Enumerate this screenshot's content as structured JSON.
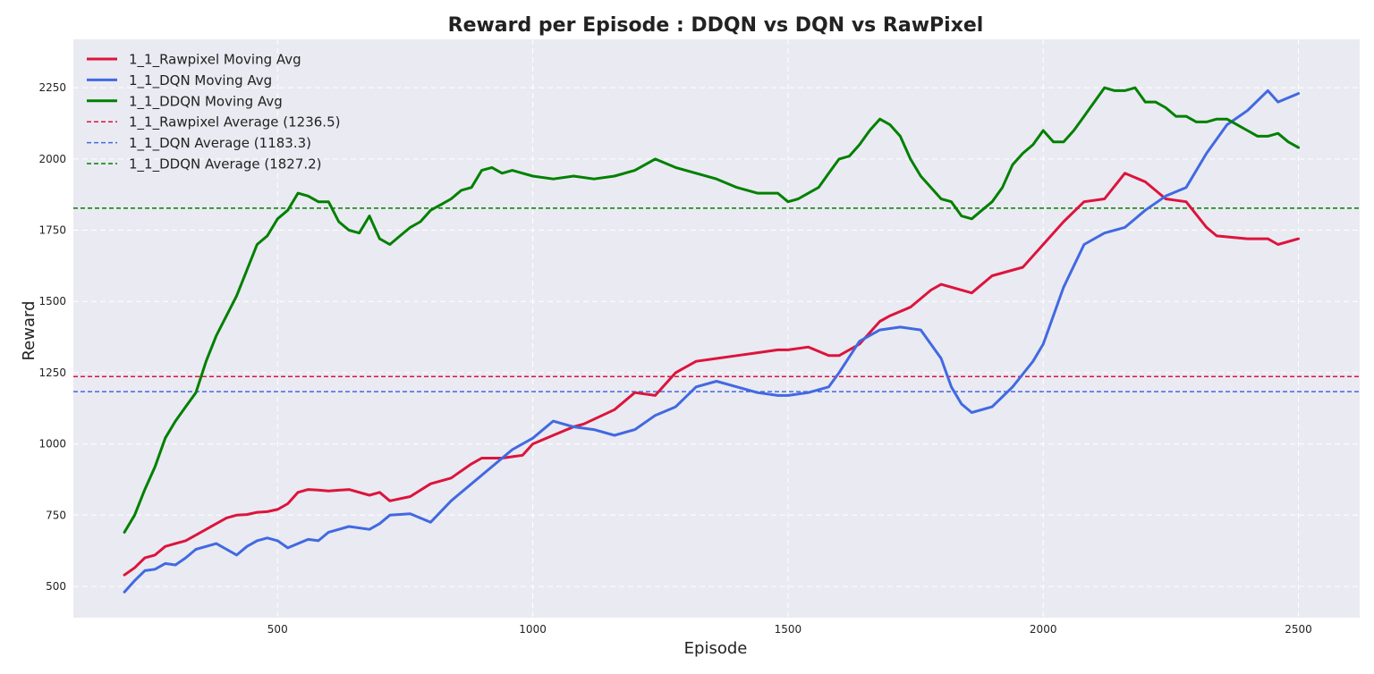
{
  "chart_data": {
    "type": "line",
    "title": "Reward per Episode : DDQN vs DQN vs RawPixel",
    "xlabel": "Episode",
    "ylabel": "Reward",
    "xlim": [
      100,
      2620
    ],
    "ylim": [
      390,
      2420
    ],
    "x_ticks": [
      500,
      1000,
      1500,
      2000,
      2500
    ],
    "y_ticks": [
      500,
      750,
      1000,
      1250,
      1500,
      1750,
      2000,
      2250
    ],
    "grid": true,
    "legend_position": "top-left",
    "series": [
      {
        "name": "1_1_Rawpixel Moving Avg",
        "color": "#dc143c",
        "style": "solid",
        "x": [
          200,
          220,
          240,
          260,
          280,
          300,
          320,
          340,
          360,
          380,
          400,
          420,
          440,
          460,
          480,
          500,
          520,
          540,
          560,
          580,
          600,
          640,
          680,
          700,
          720,
          760,
          800,
          840,
          880,
          900,
          940,
          980,
          1000,
          1040,
          1080,
          1100,
          1160,
          1200,
          1240,
          1280,
          1320,
          1360,
          1400,
          1440,
          1480,
          1500,
          1540,
          1580,
          1600,
          1640,
          1680,
          1700,
          1740,
          1780,
          1800,
          1860,
          1900,
          1960,
          2000,
          2040,
          2080,
          2120,
          2160,
          2200,
          2240,
          2280,
          2320,
          2340,
          2400,
          2440,
          2460,
          2500
        ],
        "y": [
          540,
          565,
          600,
          610,
          640,
          650,
          660,
          680,
          700,
          720,
          740,
          750,
          752,
          760,
          762,
          770,
          790,
          830,
          840,
          838,
          835,
          840,
          820,
          830,
          800,
          815,
          860,
          880,
          930,
          950,
          950,
          960,
          1000,
          1030,
          1060,
          1070,
          1120,
          1180,
          1170,
          1250,
          1290,
          1300,
          1310,
          1320,
          1330,
          1330,
          1340,
          1310,
          1310,
          1350,
          1430,
          1450,
          1480,
          1540,
          1560,
          1530,
          1590,
          1620,
          1700,
          1780,
          1850,
          1860,
          1950,
          1920,
          1860,
          1850,
          1760,
          1730,
          1720,
          1720,
          1700,
          1720
        ]
      },
      {
        "name": "1_1_DQN Moving Avg",
        "color": "#4169e1",
        "style": "solid",
        "x": [
          200,
          220,
          240,
          260,
          280,
          300,
          320,
          340,
          360,
          380,
          400,
          420,
          440,
          460,
          480,
          500,
          520,
          540,
          560,
          580,
          600,
          640,
          680,
          700,
          720,
          760,
          800,
          840,
          880,
          920,
          960,
          1000,
          1040,
          1080,
          1120,
          1160,
          1200,
          1240,
          1280,
          1320,
          1360,
          1400,
          1440,
          1480,
          1500,
          1540,
          1580,
          1600,
          1640,
          1680,
          1720,
          1760,
          1800,
          1820,
          1840,
          1860,
          1900,
          1940,
          1980,
          2000,
          2040,
          2080,
          2120,
          2160,
          2200,
          2240,
          2280,
          2320,
          2360,
          2400,
          2440,
          2460,
          2500
        ],
        "y": [
          480,
          520,
          555,
          560,
          580,
          575,
          600,
          630,
          640,
          650,
          630,
          610,
          640,
          660,
          670,
          660,
          635,
          650,
          665,
          660,
          690,
          710,
          700,
          720,
          750,
          755,
          725,
          800,
          860,
          920,
          980,
          1020,
          1080,
          1060,
          1050,
          1030,
          1050,
          1100,
          1130,
          1200,
          1220,
          1200,
          1180,
          1170,
          1170,
          1180,
          1200,
          1250,
          1360,
          1400,
          1410,
          1400,
          1300,
          1200,
          1140,
          1110,
          1130,
          1200,
          1290,
          1350,
          1550,
          1700,
          1740,
          1760,
          1820,
          1870,
          1900,
          2020,
          2120,
          2170,
          2240,
          2200,
          2230
        ]
      },
      {
        "name": "1_1_DDQN Moving Avg",
        "color": "#008000",
        "style": "solid",
        "x": [
          200,
          220,
          240,
          260,
          280,
          300,
          320,
          340,
          360,
          380,
          400,
          420,
          440,
          460,
          480,
          500,
          520,
          540,
          560,
          580,
          600,
          620,
          640,
          660,
          680,
          700,
          720,
          740,
          760,
          780,
          800,
          820,
          840,
          860,
          880,
          900,
          920,
          940,
          960,
          980,
          1000,
          1040,
          1080,
          1120,
          1160,
          1200,
          1240,
          1280,
          1320,
          1360,
          1400,
          1440,
          1480,
          1500,
          1520,
          1540,
          1560,
          1580,
          1600,
          1620,
          1640,
          1660,
          1680,
          1700,
          1720,
          1740,
          1760,
          1780,
          1800,
          1820,
          1840,
          1860,
          1880,
          1900,
          1920,
          1940,
          1960,
          1980,
          2000,
          2020,
          2040,
          2060,
          2080,
          2100,
          2120,
          2140,
          2160,
          2180,
          2200,
          2220,
          2240,
          2260,
          2280,
          2300,
          2320,
          2340,
          2360,
          2380,
          2400,
          2420,
          2440,
          2460,
          2480,
          2500
        ],
        "y": [
          690,
          750,
          840,
          920,
          1020,
          1080,
          1130,
          1180,
          1290,
          1380,
          1450,
          1520,
          1610,
          1700,
          1730,
          1790,
          1820,
          1880,
          1870,
          1850,
          1850,
          1780,
          1750,
          1740,
          1800,
          1720,
          1700,
          1730,
          1760,
          1780,
          1820,
          1840,
          1860,
          1890,
          1900,
          1960,
          1970,
          1950,
          1960,
          1950,
          1940,
          1930,
          1940,
          1930,
          1940,
          1960,
          2000,
          1970,
          1950,
          1930,
          1900,
          1880,
          1880,
          1850,
          1860,
          1880,
          1900,
          1950,
          2000,
          2010,
          2050,
          2100,
          2140,
          2120,
          2080,
          2000,
          1940,
          1900,
          1860,
          1850,
          1800,
          1790,
          1820,
          1850,
          1900,
          1980,
          2020,
          2050,
          2100,
          2060,
          2060,
          2100,
          2150,
          2200,
          2250,
          2240,
          2240,
          2250,
          2200,
          2200,
          2180,
          2150,
          2150,
          2130,
          2130,
          2140,
          2140,
          2120,
          2100,
          2080,
          2080,
          2090,
          2060,
          2040
        ]
      }
    ],
    "reference_lines": [
      {
        "name": "1_1_Rawpixel Average (1236.5)",
        "value": 1236.5,
        "color": "#dc143c",
        "style": "dashed"
      },
      {
        "name": "1_1_DQN Average (1183.3)",
        "value": 1183.3,
        "color": "#4169e1",
        "style": "dashed"
      },
      {
        "name": "1_1_DDQN Average (1827.2)",
        "value": 1827.2,
        "color": "#008000",
        "style": "dashed"
      }
    ]
  }
}
